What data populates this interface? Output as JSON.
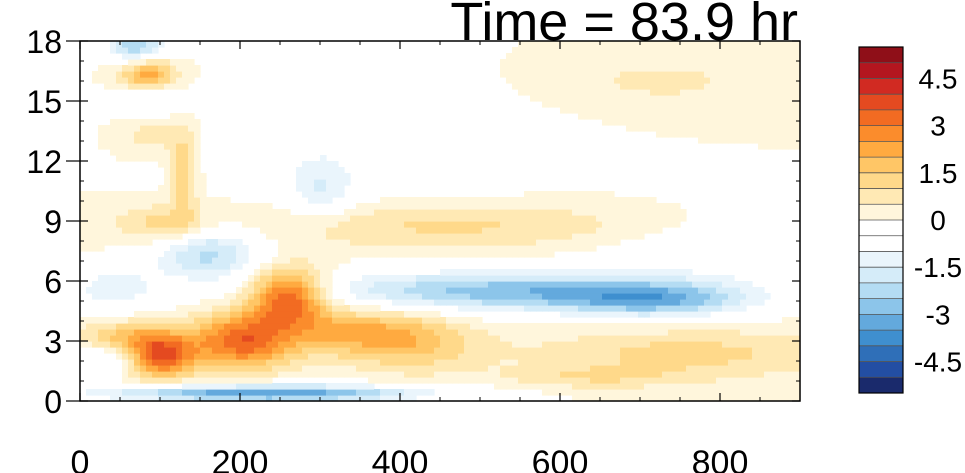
{
  "chart_data": {
    "type": "heatmap",
    "title": "Time = 83.9 hr",
    "xlabel": "",
    "ylabel": "",
    "xlim": [
      0,
      900
    ],
    "ylim": [
      0,
      18
    ],
    "x_ticks": [
      "0",
      "200",
      "400",
      "600",
      "800"
    ],
    "y_ticks": [
      "0",
      "3",
      "6",
      "9",
      "12",
      "15",
      "18"
    ],
    "colorbar": {
      "levels": [
        -5.5,
        -5,
        -4.5,
        -4,
        -3.5,
        -3,
        -2.5,
        -2,
        -1.5,
        -1,
        -0.5,
        0,
        0.5,
        1,
        1.5,
        2,
        2.5,
        3,
        3.5,
        4,
        4.5,
        5,
        5.5
      ],
      "tick_labels": [
        "4.5",
        "3",
        "1.5",
        "0",
        "-1.5",
        "-3",
        "-4.5"
      ],
      "colors": [
        "#1a2a6c",
        "#234ea3",
        "#2f6fb8",
        "#3f8fcf",
        "#63a9dd",
        "#8cc5ea",
        "#b4dcf3",
        "#d5ecf9",
        "#eaf5fc",
        "#ffffff",
        "#ffffff",
        "#fff6dc",
        "#ffe9b4",
        "#ffd98a",
        "#ffc666",
        "#ffaa40",
        "#fb8c2c",
        "#f26b22",
        "#e44a20",
        "#d12a22",
        "#b4161f",
        "#8f0f18"
      ]
    },
    "features": [
      {
        "x": 70,
        "y": 17.8,
        "value": -2.5,
        "sx": 25,
        "sy": 0.6
      },
      {
        "x": 85,
        "y": 16.3,
        "value": 2.5,
        "sx": 25,
        "sy": 0.6
      },
      {
        "x": 85,
        "y": 15.0,
        "value": -1.2,
        "sx": 30,
        "sy": 0.7
      },
      {
        "x": 90,
        "y": 13.5,
        "value": 0.9,
        "sx": 30,
        "sy": 0.8
      },
      {
        "x": 370,
        "y": 12.5,
        "value": -0.6,
        "sx": 160,
        "sy": 3.0
      },
      {
        "x": 300,
        "y": 10.5,
        "value": -1.2,
        "sx": 30,
        "sy": 1.2
      },
      {
        "x": 130,
        "y": 11.5,
        "value": 1.5,
        "sx": 12,
        "sy": 1.5
      },
      {
        "x": 440,
        "y": 8.8,
        "value": 1.3,
        "sx": 220,
        "sy": 0.9
      },
      {
        "x": 160,
        "y": 7.5,
        "value": -2.3,
        "sx": 50,
        "sy": 1.0
      },
      {
        "x": 110,
        "y": 8.8,
        "value": 1.3,
        "sx": 40,
        "sy": 0.7
      },
      {
        "x": 540,
        "y": 5.5,
        "value": -2.8,
        "sx": 180,
        "sy": 0.7
      },
      {
        "x": 720,
        "y": 5.0,
        "value": -2.0,
        "sx": 80,
        "sy": 0.6
      },
      {
        "x": 760,
        "y": 7.8,
        "value": -0.6,
        "sx": 100,
        "sy": 1.5
      },
      {
        "x": 720,
        "y": 16.0,
        "value": 0.6,
        "sx": 120,
        "sy": 1.2
      },
      {
        "x": 40,
        "y": 5.6,
        "value": -1.3,
        "sx": 40,
        "sy": 0.8
      },
      {
        "x": 260,
        "y": 5.3,
        "value": 3.8,
        "sx": 35,
        "sy": 1.0
      },
      {
        "x": 200,
        "y": 3.0,
        "value": 3.2,
        "sx": 45,
        "sy": 1.0
      },
      {
        "x": 340,
        "y": 3.5,
        "value": 1.8,
        "sx": 70,
        "sy": 0.9
      },
      {
        "x": 100,
        "y": 2.3,
        "value": 3.5,
        "sx": 30,
        "sy": 0.8
      },
      {
        "x": 50,
        "y": 3.2,
        "value": 1.6,
        "sx": 40,
        "sy": 0.6
      },
      {
        "x": 40,
        "y": 2.2,
        "value": -1.2,
        "sx": 30,
        "sy": 0.6
      },
      {
        "x": 420,
        "y": 2.8,
        "value": 1.2,
        "sx": 60,
        "sy": 1.0
      },
      {
        "x": 230,
        "y": 0.4,
        "value": -3.6,
        "sx": 140,
        "sy": 0.3
      },
      {
        "x": 760,
        "y": 2.4,
        "value": 1.2,
        "sx": 140,
        "sy": 0.9
      },
      {
        "x": 640,
        "y": 1.2,
        "value": 0.8,
        "sx": 80,
        "sy": 0.4
      }
    ]
  }
}
